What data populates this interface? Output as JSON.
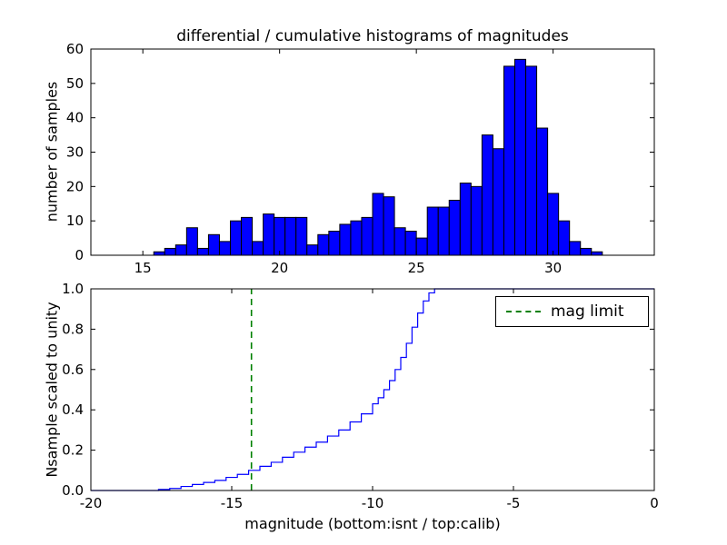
{
  "chart_data": [
    {
      "type": "bar",
      "title": "differential / cumulative histograms of magnitudes",
      "ylabel": "number of samples",
      "xlabel": "",
      "xlim": [
        13.1,
        33.7
      ],
      "ylim": [
        0,
        60
      ],
      "xticks": [
        "15",
        "20",
        "25",
        "30"
      ],
      "yticks": [
        "0",
        "10",
        "20",
        "30",
        "40",
        "50",
        "60"
      ],
      "bar_color": "#0000ff",
      "bar_edge_color": "#000000",
      "bin_start": 15.0,
      "bin_width": 0.4,
      "values": [
        0,
        1,
        2,
        3,
        8,
        2,
        6,
        4,
        10,
        11,
        4,
        12,
        11,
        11,
        11,
        3,
        6,
        7,
        9,
        10,
        11,
        18,
        17,
        8,
        7,
        5,
        14,
        14,
        16,
        21,
        20,
        35,
        31,
        55,
        57,
        55,
        37,
        18,
        10,
        4,
        2,
        1
      ],
      "legend_position": "none",
      "grid": false
    },
    {
      "type": "line",
      "style": "step",
      "title": "",
      "ylabel": "Nsample scaled to unity",
      "xlabel": "magnitude (bottom:isnt / top:calib)",
      "xlim": [
        -20,
        0
      ],
      "ylim": [
        0,
        1
      ],
      "xticks": [
        "-20",
        "-15",
        "-10",
        "-5",
        "0"
      ],
      "yticks": [
        "0.0",
        "0.2",
        "0.4",
        "0.6",
        "0.8",
        "1.0"
      ],
      "line_color": "#0000ff",
      "x": [
        -20,
        -17.6,
        -17.2,
        -16.8,
        -16.4,
        -16.0,
        -15.6,
        -15.2,
        -14.8,
        -14.4,
        -14.0,
        -13.6,
        -13.2,
        -12.8,
        -12.4,
        -12.0,
        -11.6,
        -11.2,
        -10.8,
        -10.4,
        -10.0,
        -9.8,
        -9.6,
        -9.4,
        -9.2,
        -9.0,
        -8.8,
        -8.6,
        -8.4,
        -8.2,
        -8.0,
        -7.8,
        0
      ],
      "y": [
        0,
        0.005,
        0.01,
        0.02,
        0.03,
        0.04,
        0.05,
        0.065,
        0.08,
        0.1,
        0.12,
        0.14,
        0.165,
        0.19,
        0.215,
        0.24,
        0.27,
        0.3,
        0.34,
        0.38,
        0.43,
        0.46,
        0.5,
        0.545,
        0.6,
        0.66,
        0.73,
        0.81,
        0.88,
        0.94,
        0.98,
        1.0,
        1.0
      ],
      "vline": {
        "x": -14.3,
        "color": "#008000",
        "style": "dashed",
        "label": "mag limit"
      },
      "legend": {
        "position": "upper right",
        "entries": [
          {
            "label": "mag limit",
            "color": "#008000",
            "dash": true
          }
        ]
      },
      "grid": false
    }
  ]
}
